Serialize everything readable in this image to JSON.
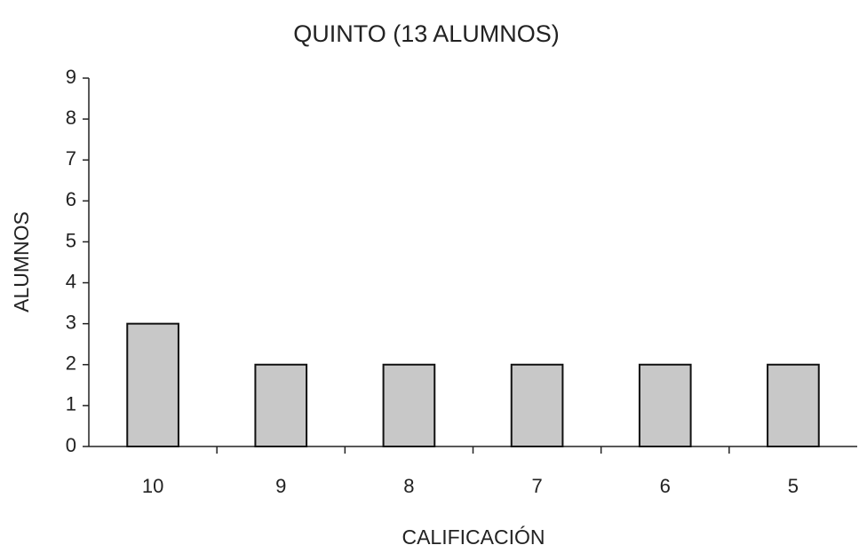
{
  "chart_data": {
    "type": "bar",
    "title": "QUINTO (13 ALUMNOS)",
    "x_label": "CALIFICACIÓN",
    "y_label": "ALUMNOS",
    "categories": [
      "10",
      "9",
      "8",
      "7",
      "6",
      "5"
    ],
    "values": [
      3,
      2,
      2,
      2,
      2,
      2
    ],
    "color": "#c8c8c8",
    "ylim": [
      0,
      9
    ],
    "yticks": [
      0,
      1,
      2,
      3,
      4,
      5,
      6,
      7,
      8,
      9
    ],
    "grid": false
  }
}
